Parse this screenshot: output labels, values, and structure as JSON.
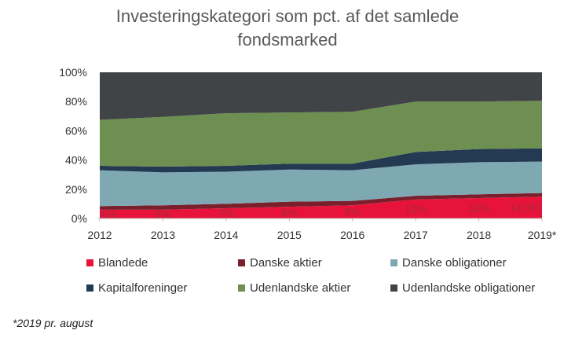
{
  "chart_data": {
    "type": "area",
    "stacked": true,
    "title": "Investeringskategori som pct. af det samlede fondsmarked",
    "title_lines": [
      "Investeringskategori som pct. af det samlede",
      "fondsmarked"
    ],
    "categories": [
      "2012",
      "2013",
      "2014",
      "2015",
      "2016",
      "2017",
      "2018",
      "2019*"
    ],
    "ylim": [
      0,
      100
    ],
    "yticks": [
      "0%",
      "20%",
      "40%",
      "60%",
      "80%",
      "100%"
    ],
    "ytick_values": [
      0,
      20,
      40,
      60,
      80,
      100
    ],
    "grid": false,
    "legend_position": "bottom",
    "series": [
      {
        "name": "Blandede",
        "color": "#e8133a",
        "values": [
          6,
          6,
          7,
          8,
          9,
          13,
          14,
          14.9
        ]
      },
      {
        "name": "Danske aktier",
        "color": "#7b1f2c",
        "values": [
          2.5,
          3,
          3,
          3.5,
          3,
          2.5,
          2.5,
          2.5
        ]
      },
      {
        "name": "Danske obligationer",
        "color": "#7fa9b2",
        "values": [
          24.5,
          22.5,
          22,
          22,
          21,
          21.5,
          22,
          21.5
        ]
      },
      {
        "name": "Kapitalforeninger",
        "color": "#243a52",
        "values": [
          3,
          4,
          4,
          4,
          4.5,
          8.5,
          9,
          9.1
        ]
      },
      {
        "name": "Udenlandske aktier",
        "color": "#6e8f52",
        "values": [
          31.5,
          34,
          36,
          35,
          35.5,
          34.5,
          32.5,
          32.5
        ]
      },
      {
        "name": "Udenlandske obligationer",
        "color": "#404447",
        "values": [
          32.5,
          30.5,
          28,
          27.5,
          27,
          20,
          20,
          19.5
        ]
      }
    ],
    "data_labels": [
      "6%",
      "6%",
      "7%",
      "8%",
      "9%",
      "13%",
      "14%",
      "14,9%"
    ],
    "footnote": "*2019 pr. august"
  }
}
